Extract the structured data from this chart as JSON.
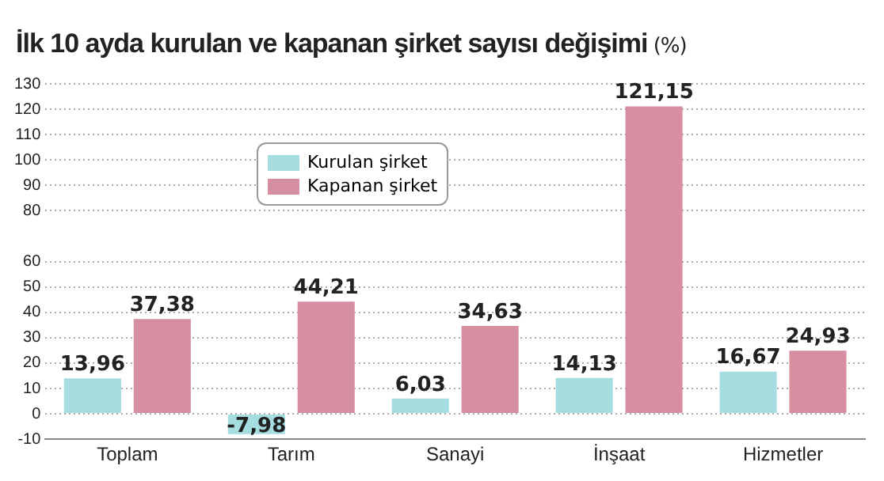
{
  "chart_data": {
    "type": "bar",
    "title": "İlk 10 ayda kurulan ve kapanan şirket sayısı değişimi",
    "ylabel": "(%)",
    "categories": [
      "Toplam",
      "Tarım",
      "Sanayi",
      "İnşaat",
      "Hizmetler"
    ],
    "series": [
      {
        "name": "Kurulan şirket",
        "color": "#a6dde0",
        "values": [
          13.96,
          -7.98,
          6.03,
          14.13,
          16.67
        ],
        "value_labels": [
          "13,96",
          "-7,98",
          "6,03",
          "14,13",
          "16,67"
        ]
      },
      {
        "name": "Kapanan şirket",
        "color": "#d68fa0",
        "values": [
          37.38,
          44.21,
          34.63,
          121.15,
          24.93
        ],
        "value_labels": [
          "37,38",
          "44,21",
          "34,63",
          "121,15",
          "24,93"
        ]
      }
    ],
    "ylim": [
      -10,
      130
    ],
    "yticks": [
      -10,
      0,
      10,
      20,
      30,
      40,
      50,
      60,
      80,
      90,
      100,
      110,
      120,
      130
    ],
    "grid": "y",
    "legend": "top left"
  }
}
